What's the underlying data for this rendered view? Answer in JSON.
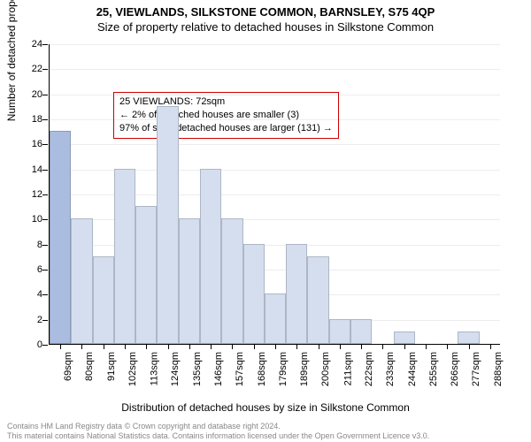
{
  "title": {
    "main": "25, VIEWLANDS, SILKSTONE COMMON, BARNSLEY, S75 4QP",
    "sub": "Size of property relative to detached houses in Silkstone Common"
  },
  "ylabel": "Number of detached properties",
  "xlabel": "Distribution of detached houses by size in Silkstone Common",
  "infobox": {
    "line1": "25 VIEWLANDS: 72sqm",
    "line2": "← 2% of detached houses are smaller (3)",
    "line3": "97% of semi-detached houses are larger (131) →"
  },
  "footer": {
    "line1": "Contains HM Land Registry data © Crown copyright and database right 2024.",
    "line2": "This material contains National Statistics data. Contains information licensed under the Open Government Licence v3.0."
  },
  "chart": {
    "type": "bar",
    "background_color": "#ffffff",
    "grid_color": "rgba(0,0,0,0.07)",
    "axis_color": "#000000",
    "bar_border_color": "rgba(0,0,0,0.18)",
    "infobox_border_color": "#cc0000",
    "bar_color_left": "#aabde0",
    "bar_color_right": "#d4deef",
    "highlight_index": 0,
    "ylim": [
      0,
      24
    ],
    "ytick_step": 2,
    "bar_width_ratio": 1.0,
    "title_fontsize": 13,
    "label_fontsize": 12,
    "tick_fontsize": 11,
    "categories": [
      "69sqm",
      "80sqm",
      "91sqm",
      "102sqm",
      "113sqm",
      "124sqm",
      "135sqm",
      "146sqm",
      "157sqm",
      "168sqm",
      "179sqm",
      "189sqm",
      "200sqm",
      "211sqm",
      "222sqm",
      "233sqm",
      "244sqm",
      "255sqm",
      "266sqm",
      "277sqm",
      "288sqm"
    ],
    "values": [
      17,
      10,
      7,
      14,
      11,
      19,
      10,
      14,
      10,
      8,
      4,
      8,
      7,
      2,
      2,
      0,
      1,
      0,
      0,
      1,
      0
    ]
  }
}
